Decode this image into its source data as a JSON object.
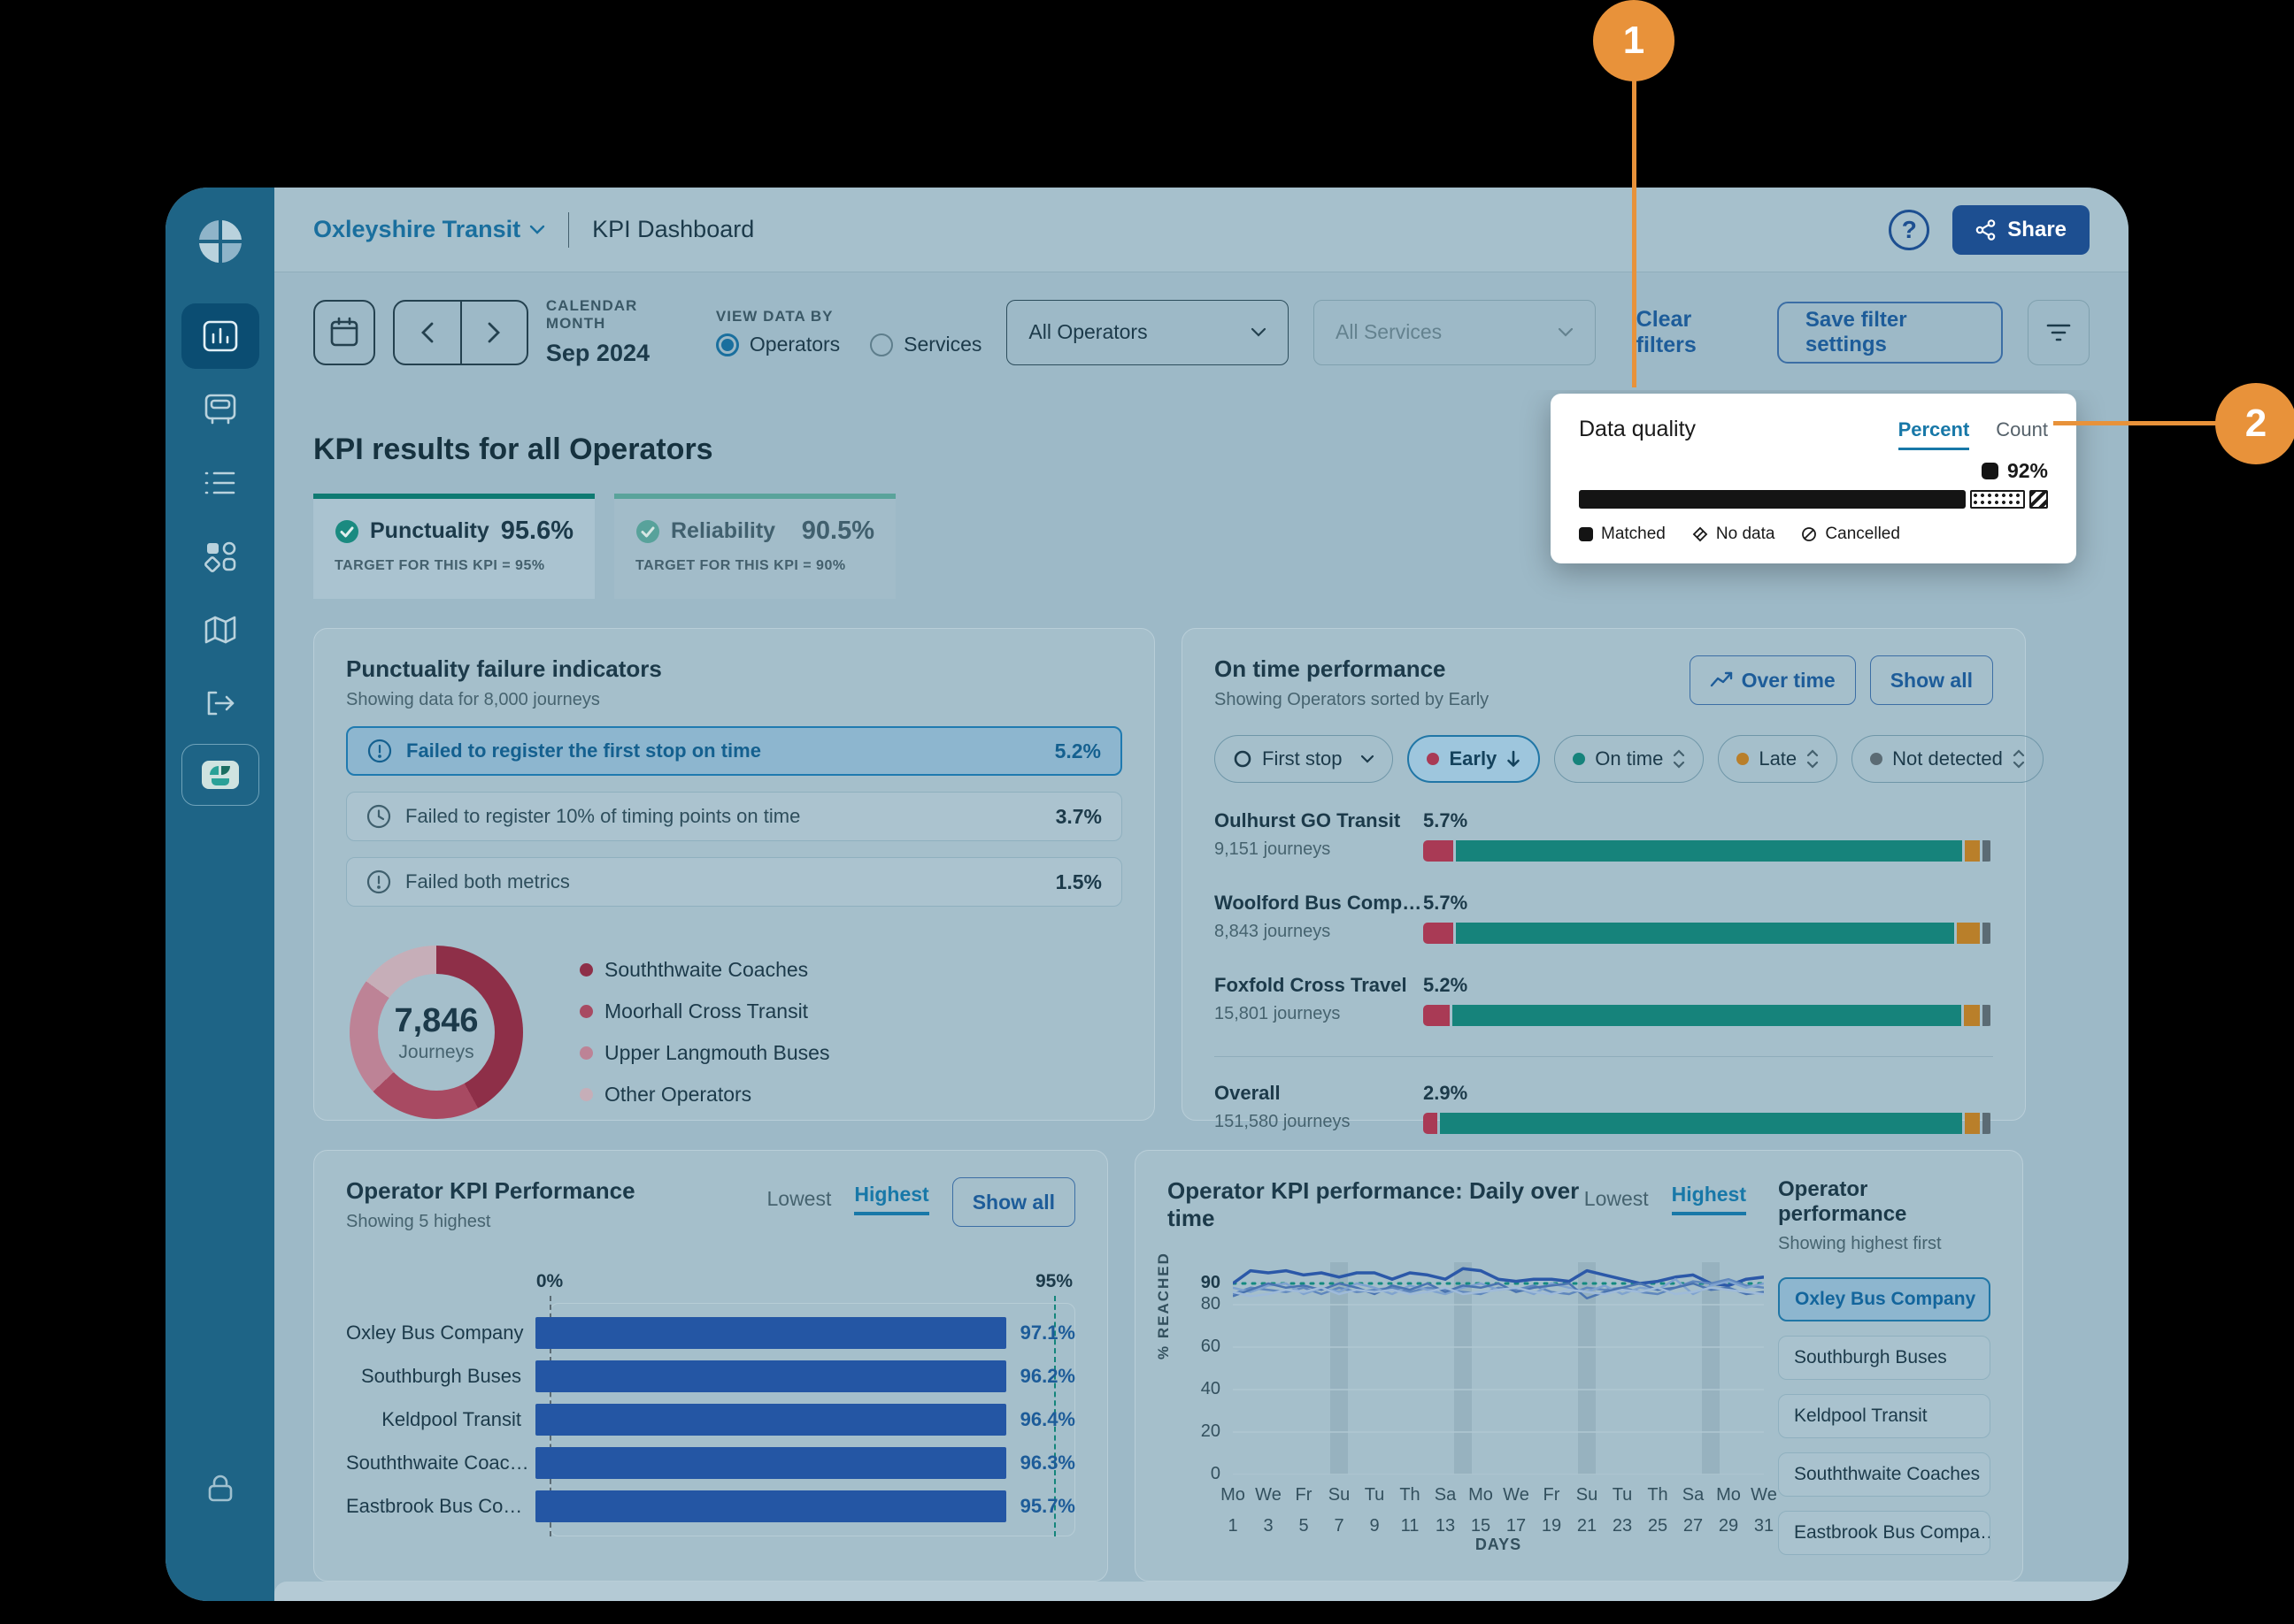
{
  "header": {
    "org": "Oxleyshire Transit",
    "title": "KPI Dashboard",
    "share": "Share"
  },
  "sidebar": {
    "items": [
      "analytics",
      "vehicle",
      "list",
      "categories",
      "map",
      "logout",
      "apps"
    ],
    "active": "analytics"
  },
  "filters": {
    "calendar_label": "CALENDAR MONTH",
    "calendar_value": "Sep 2024",
    "view_label": "VIEW DATA BY",
    "radio_operators": "Operators",
    "radio_services": "Services",
    "operators_value": "All Operators",
    "services_value": "All Services",
    "clear": "Clear filters",
    "save": "Save filter settings"
  },
  "kpi": {
    "heading": "KPI results for all Operators",
    "tabs": [
      {
        "label": "Punctuality",
        "value": "95.6%",
        "target": "TARGET FOR THIS KPI = 95%",
        "active": true
      },
      {
        "label": "Reliability",
        "value": "90.5%",
        "target": "TARGET FOR THIS KPI = 90%",
        "active": false
      }
    ]
  },
  "data_quality": {
    "title": "Data quality",
    "percent": "Percent",
    "count": "Count",
    "value_label": "92%",
    "bar": {
      "matched": 84,
      "no_data": 12,
      "cancelled": 4
    },
    "legend": [
      {
        "label": "Matched"
      },
      {
        "label": "No data"
      },
      {
        "label": "Cancelled"
      }
    ]
  },
  "callouts": {
    "one": "1",
    "two": "2",
    "color": "#e8923a"
  },
  "failure": {
    "title": "Punctuality failure indicators",
    "subtitle": "Showing data for 8,000 journeys",
    "rows": [
      {
        "label": "Failed to register the first stop on time",
        "value": "5.2%",
        "selected": true
      },
      {
        "label": "Failed to register 10% of timing points on time",
        "value": "3.7%",
        "selected": false
      },
      {
        "label": "Failed both metrics",
        "value": "1.5%",
        "selected": false
      }
    ],
    "donut_total": "7,846",
    "donut_caption": "Journeys",
    "legend": [
      {
        "label": "Souththwaite Coaches"
      },
      {
        "label": "Moorhall Cross Transit"
      },
      {
        "label": "Upper Langmouth Buses"
      },
      {
        "label": "Other Operators"
      }
    ]
  },
  "on_time": {
    "title": "On time performance",
    "subtitle": "Showing Operators sorted by Early",
    "overtime_btn": "Over time",
    "showall_btn": "Show all",
    "first_stop_chip": "First stop",
    "chips": [
      {
        "label": "Early",
        "color": "#a93a55",
        "selected": true
      },
      {
        "label": "On time",
        "color": "#16837b",
        "selected": false
      },
      {
        "label": "Late",
        "color": "#b97f2a",
        "selected": false
      },
      {
        "label": "Not detected",
        "color": "#5b6b74",
        "selected": false
      }
    ],
    "rows": [
      {
        "name": "Oulhurst GO Transit",
        "journeys": "9,151 journeys",
        "pct": "5.7%"
      },
      {
        "name": "Woolford Bus Comp…",
        "journeys": "8,843 journeys",
        "pct": "5.7%"
      },
      {
        "name": "Foxfold Cross Travel",
        "journeys": "15,801 journeys",
        "pct": "5.2%"
      }
    ],
    "overall": {
      "name": "Overall",
      "journeys": "151,580 journeys",
      "pct": "2.9%"
    }
  },
  "perf": {
    "title": "Operator KPI Performance",
    "subtitle": "Showing 5 highest",
    "lowest": "Lowest",
    "highest": "Highest",
    "showall_btn": "Show all"
  },
  "daily": {
    "title": "Operator KPI performance: Daily over time",
    "lowest": "Lowest",
    "highest": "Highest",
    "panel_title": "Operator performance",
    "panel_sub": "Showing highest first",
    "buttons": [
      {
        "label": "Oxley Bus Company",
        "selected": true
      },
      {
        "label": "Southburgh Buses",
        "selected": false
      },
      {
        "label": "Keldpool Transit",
        "selected": false
      },
      {
        "label": "Souththwaite Coaches",
        "selected": false
      },
      {
        "label": "Eastbrook Bus Compa…",
        "selected": false
      }
    ]
  },
  "chart_data": [
    {
      "id": "journeys-donut",
      "type": "pie",
      "title": "Punctuality failures — journeys by operator",
      "total": 7846,
      "segments": [
        {
          "label": "Souththwaite Coaches",
          "value": 42,
          "color": "#8e2f48"
        },
        {
          "label": "Moorhall Cross Transit",
          "value": 21,
          "color": "#a84a62"
        },
        {
          "label": "Upper Langmouth Buses",
          "value": 22,
          "color": "#bd8396"
        },
        {
          "label": "Other Operators",
          "value": 15,
          "color": "#c6aeb8"
        }
      ]
    },
    {
      "id": "on-time-stacked",
      "type": "bar",
      "stacked": true,
      "categories": [
        "Oulhurst GO Transit",
        "Woolford Bus Comp…",
        "Foxfold Cross Travel",
        "Overall"
      ],
      "journeys": [
        9151,
        8843,
        15801,
        151580
      ],
      "series": [
        {
          "name": "Early",
          "color": "#a93a55",
          "values": [
            5.7,
            5.7,
            5.2,
            2.9
          ]
        },
        {
          "name": "On time",
          "color": "#16837b",
          "values": [
            89.4,
            87.9,
            89.6,
            92.2
          ]
        },
        {
          "name": "Late",
          "color": "#b97f2a",
          "values": [
            3.1,
            4.6,
            3.4,
            3.1
          ]
        },
        {
          "name": "Not detected",
          "color": "#5b6b74",
          "values": [
            1.8,
            1.8,
            1.8,
            1.8
          ]
        }
      ]
    },
    {
      "id": "operator-kpi-bars",
      "type": "bar",
      "xlim": [
        0,
        100
      ],
      "target": 95,
      "axis_labels": [
        "0%",
        "95%"
      ],
      "bar_color": "#2456a4",
      "rows": [
        {
          "name": "Oxley Bus Company",
          "value": 97.1,
          "value_label": "97.1%"
        },
        {
          "name": "Southburgh Buses",
          "value": 96.2,
          "value_label": "96.2%"
        },
        {
          "name": "Keldpool Transit",
          "value": 96.4,
          "value_label": "96.4%"
        },
        {
          "name": "Souththwaite Coac…",
          "value": 96.3,
          "value_label": "96.3%"
        },
        {
          "name": "Eastbrook Bus Co…",
          "value": 95.7,
          "value_label": "95.7%"
        }
      ]
    },
    {
      "id": "daily-lines",
      "type": "line",
      "ylabel": "% REACHED",
      "xlabel": "DAYS",
      "ylim": [
        0,
        100
      ],
      "yticks": [
        90,
        80,
        60,
        40,
        20,
        0
      ],
      "target": 90,
      "target_color": "#148a80",
      "x_days": [
        {
          "d": "Mo",
          "n": "1"
        },
        {
          "d": "We",
          "n": "3"
        },
        {
          "d": "Fr",
          "n": "5"
        },
        {
          "d": "Su",
          "n": "7"
        },
        {
          "d": "Tu",
          "n": "9"
        },
        {
          "d": "Th",
          "n": "11"
        },
        {
          "d": "Sa",
          "n": "13"
        },
        {
          "d": "Mo",
          "n": "15"
        },
        {
          "d": "We",
          "n": "17"
        },
        {
          "d": "Fr",
          "n": "19"
        },
        {
          "d": "Su",
          "n": "21"
        },
        {
          "d": "Tu",
          "n": "23"
        },
        {
          "d": "Th",
          "n": "25"
        },
        {
          "d": "Sa",
          "n": "27"
        },
        {
          "d": "Mo",
          "n": "29"
        },
        {
          "d": "We",
          "n": "31"
        }
      ],
      "weekend_bands": [
        [
          6.5,
          7.5
        ],
        [
          13.5,
          14.5
        ],
        [
          20.5,
          21.5
        ],
        [
          27.5,
          28.5
        ]
      ],
      "series": [
        {
          "name": "Oxley Bus Company",
          "color": "#2b58a8",
          "width": 3.5,
          "values": [
            90,
            96,
            95,
            96,
            94,
            95,
            93,
            95,
            95,
            92,
            95,
            94,
            92,
            97,
            96,
            92,
            91,
            92,
            92,
            91,
            96,
            94,
            92,
            90,
            91,
            93,
            94,
            90,
            89,
            92,
            93
          ]
        },
        {
          "name": "Southburgh Buses",
          "color": "#5f87bd",
          "width": 2.5,
          "values": [
            85,
            88,
            87,
            86,
            88,
            85,
            88,
            86,
            87,
            88,
            86,
            88,
            87,
            86,
            85,
            88,
            87,
            89,
            86,
            85,
            88,
            87,
            88,
            86,
            85,
            88,
            91,
            90,
            92,
            89,
            88
          ]
        },
        {
          "name": "Keldpool Transit",
          "color": "#7fa3cf",
          "width": 2.5,
          "values": [
            88,
            86,
            89,
            90,
            85,
            88,
            86,
            90,
            88,
            85,
            89,
            87,
            85,
            88,
            90,
            87,
            88,
            85,
            90,
            88,
            86,
            89,
            85,
            88,
            87,
            92,
            85,
            89,
            91,
            88,
            90
          ]
        },
        {
          "name": "Souththwaite Coaches",
          "color": "#4a74b0",
          "width": 2.5,
          "values": [
            84,
            87,
            90,
            88,
            89,
            87,
            90,
            88,
            85,
            89,
            87,
            90,
            86,
            89,
            88,
            90,
            86,
            88,
            89,
            90,
            83,
            86,
            88,
            90,
            87,
            88,
            90,
            87,
            88,
            85,
            86
          ]
        },
        {
          "name": "Eastbrook Bus Company",
          "color": "#9fbbd9",
          "width": 2.5,
          "values": [
            86,
            84,
            85,
            87,
            86,
            88,
            85,
            87,
            86,
            87,
            85,
            86,
            88,
            85,
            86,
            87,
            88,
            86,
            85,
            87,
            86,
            85,
            87,
            86,
            88,
            85,
            86,
            88,
            87,
            86,
            85
          ]
        }
      ]
    }
  ]
}
